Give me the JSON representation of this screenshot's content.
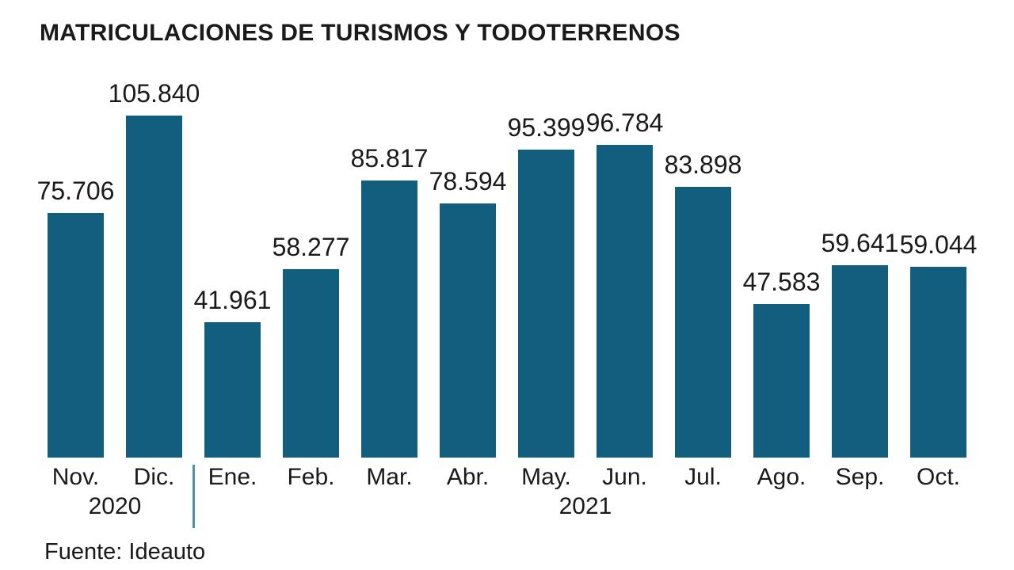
{
  "source": "Fuente: Ideauto",
  "chart_data": {
    "type": "bar",
    "title": "MATRICULACIONES DE TURISMOS Y TODOTERRENOS",
    "categories": [
      "Nov.",
      "Dic.",
      "Ene.",
      "Feb.",
      "Mar.",
      "Abr.",
      "May.",
      "Jun.",
      "Jul.",
      "Ago.",
      "Sep.",
      "Oct."
    ],
    "values": [
      75706,
      105840,
      41961,
      58277,
      85817,
      78594,
      95399,
      96784,
      83898,
      47583,
      59641,
      59044
    ],
    "value_labels": [
      "75.706",
      "105.840",
      "41.961",
      "58.277",
      "85.817",
      "78.594",
      "95.399",
      "96.784",
      "83.898",
      "47.583",
      "59.641",
      "59.044"
    ],
    "year_groups": [
      {
        "label": "2020",
        "start": 0,
        "end": 1
      },
      {
        "label": "2021",
        "start": 2,
        "end": 11
      }
    ],
    "ylim": [
      0,
      105840
    ],
    "grid": false,
    "legend": false,
    "xlabel": "",
    "ylabel": "",
    "bar_color": "#115e7e",
    "divider_color": "#4d93a9",
    "text_color": "#1a1a1a"
  }
}
